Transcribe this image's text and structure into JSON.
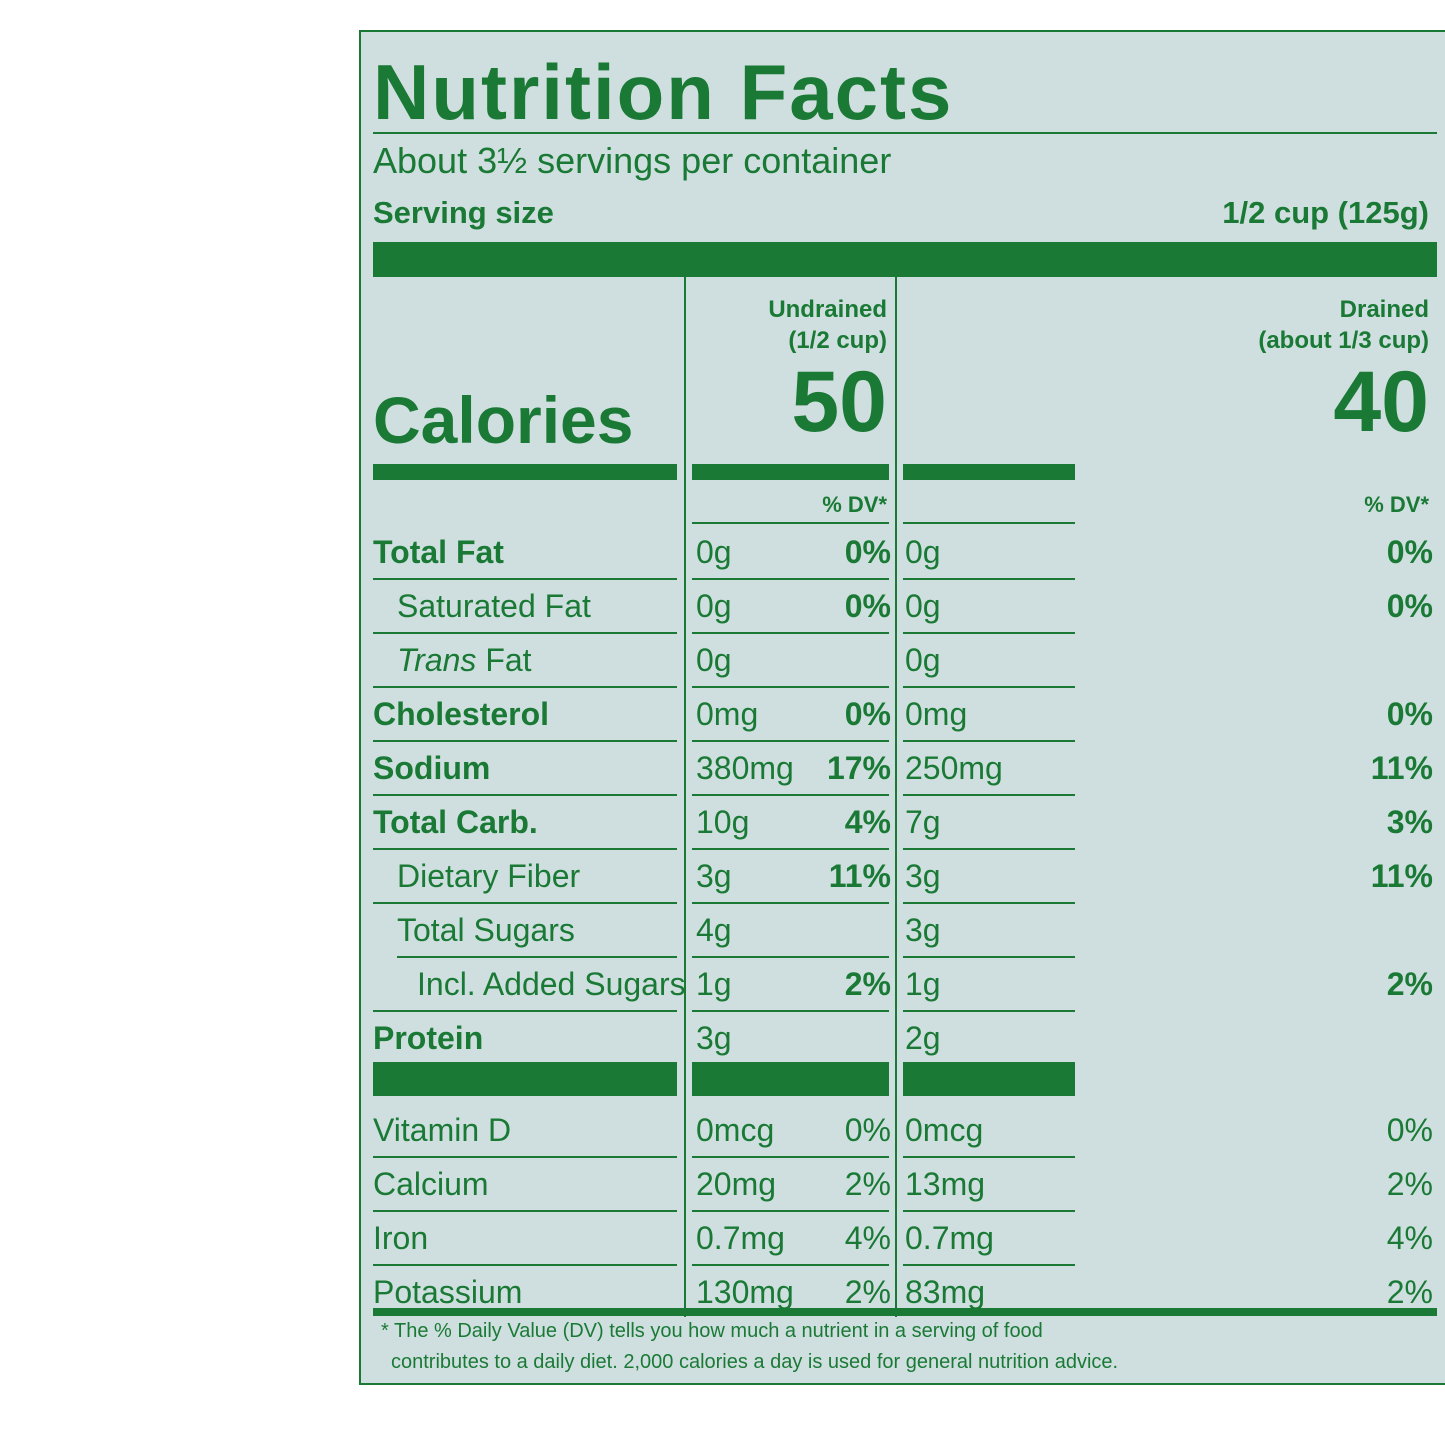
{
  "title": "Nutrition Facts",
  "servings_per_container": "About 3½ servings per container",
  "serving_size": {
    "label": "Serving size",
    "value": "1/2 cup (125g)"
  },
  "columns": [
    {
      "name": "Undrained",
      "sub": "(1/2 cup)"
    },
    {
      "name": "Drained",
      "sub": "(about 1/3 cup)"
    }
  ],
  "calories": {
    "label": "Calories",
    "undrained": "50",
    "drained": "40"
  },
  "dv_header": "% DV*",
  "nutrients": [
    {
      "name": "Total Fat",
      "style": "bold",
      "u_amt": "0g",
      "u_dv": "0%",
      "d_amt": "0g",
      "d_dv": "0%"
    },
    {
      "name": "Saturated Fat",
      "style": "ind1",
      "u_amt": "0g",
      "u_dv": "0%",
      "d_amt": "0g",
      "d_dv": "0%"
    },
    {
      "name_italic": "Trans",
      "name": " Fat",
      "style": "ind1",
      "u_amt": "0g",
      "u_dv": "",
      "d_amt": "0g",
      "d_dv": ""
    },
    {
      "name": "Cholesterol",
      "style": "bold",
      "u_amt": "0mg",
      "u_dv": "0%",
      "d_amt": "0mg",
      "d_dv": "0%"
    },
    {
      "name": "Sodium",
      "style": "bold",
      "u_amt": "380mg",
      "u_dv": "17%",
      "d_amt": "250mg",
      "d_dv": "11%"
    },
    {
      "name": "Total Carb.",
      "style": "bold",
      "u_amt": "10g",
      "u_dv": "4%",
      "d_amt": "7g",
      "d_dv": "3%"
    },
    {
      "name": "Dietary Fiber",
      "style": "ind1",
      "u_amt": "3g",
      "u_dv": "11%",
      "d_amt": "3g",
      "d_dv": "11%"
    },
    {
      "name": "Total Sugars",
      "style": "ind1",
      "u_amt": "4g",
      "u_dv": "",
      "d_amt": "3g",
      "d_dv": ""
    },
    {
      "name": "Incl. Added Sugars",
      "style": "ind2",
      "u_amt": "1g",
      "u_dv": "2%",
      "d_amt": "1g",
      "d_dv": "2%"
    },
    {
      "name": "Protein",
      "style": "bold",
      "u_amt": "3g",
      "u_dv": "",
      "d_amt": "2g",
      "d_dv": ""
    }
  ],
  "vitamins": [
    {
      "name": "Vitamin D",
      "u_amt": "0mcg",
      "u_dv": "0%",
      "d_amt": "0mcg",
      "d_dv": "0%"
    },
    {
      "name": "Calcium",
      "u_amt": "20mg",
      "u_dv": "2%",
      "d_amt": "13mg",
      "d_dv": "2%"
    },
    {
      "name": "Iron",
      "u_amt": "0.7mg",
      "u_dv": "4%",
      "d_amt": "0.7mg",
      "d_dv": "4%"
    },
    {
      "name": "Potassium",
      "u_amt": "130mg",
      "u_dv": "2%",
      "d_amt": "83mg",
      "d_dv": "2%"
    }
  ],
  "footnote": {
    "line1": "* The % Daily Value (DV) tells you how much a nutrient in a serving of food",
    "line2": "contributes to a daily diet. 2,000 calories a day is used for general nutrition advice."
  }
}
